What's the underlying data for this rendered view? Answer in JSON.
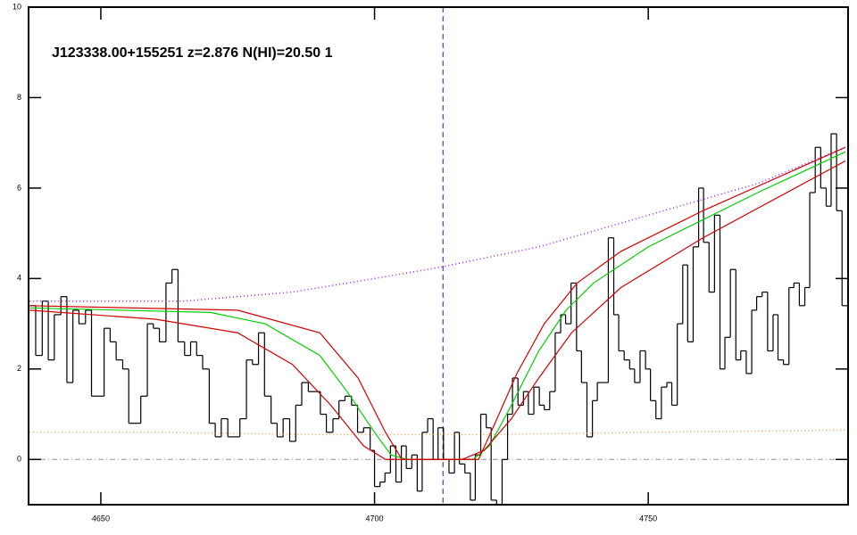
{
  "chart_data": {
    "type": "line",
    "title": "J123338.00+155251 z=2.876 N(HI)=20.50 1",
    "xlim": [
      4636.8,
      4786.5
    ],
    "ylim": [
      -1,
      10
    ],
    "xticks": [
      4650,
      4700,
      4750
    ],
    "yticks": [
      0,
      2,
      4,
      6,
      8,
      10
    ],
    "reference_x": 4712.5,
    "reference_y": 0,
    "series": [
      {
        "style": "steps",
        "color": "#000000",
        "x": [
          4637.0,
          4638.1,
          4639.3,
          4640.4,
          4641.5,
          4642.7,
          4643.8,
          4644.9,
          4646.0,
          4647.2,
          4648.3,
          4649.4,
          4650.6,
          4651.7,
          4652.8,
          4654.0,
          4655.1,
          4656.2,
          4657.3,
          4658.5,
          4659.6,
          4660.7,
          4661.9,
          4663.0,
          4664.1,
          4665.3,
          4666.4,
          4667.5,
          4668.6,
          4669.8,
          4670.9,
          4672.0,
          4673.2,
          4674.3,
          4675.4,
          4676.6,
          4677.7,
          4678.8,
          4679.9,
          4681.1,
          4682.2,
          4683.3,
          4684.5,
          4685.6,
          4686.7,
          4687.9,
          4689.0,
          4690.1,
          4691.2,
          4692.4,
          4693.5,
          4694.6,
          4695.8,
          4696.9,
          4698.0,
          4699.2,
          4700.0,
          4701.0,
          4701.9,
          4702.9,
          4703.9,
          4704.9,
          4705.8,
          4706.8,
          4707.8,
          4708.7,
          4709.7,
          4710.7,
          4711.6,
          4712.6,
          4713.6,
          4714.6,
          4715.5,
          4716.5,
          4717.5,
          4718.4,
          4719.4,
          4720.4,
          4721.3,
          4722.3,
          4723.3,
          4724.3,
          4725.2,
          4726.2,
          4727.2,
          4728.1,
          4729.1,
          4730.1,
          4731.0,
          4732.0,
          4733.0,
          4734.0,
          4734.9,
          4735.9,
          4736.9,
          4737.8,
          4738.8,
          4739.8,
          4740.7,
          4741.7,
          4742.7,
          4743.7,
          4744.6,
          4745.6,
          4746.6,
          4747.5,
          4748.5,
          4749.5,
          4750.4,
          4751.4,
          4752.4,
          4753.4,
          4754.3,
          4755.3,
          4756.3,
          4757.2,
          4758.2,
          4759.2,
          4760.1,
          4761.1,
          4762.1,
          4763.1,
          4764.0,
          4765.0,
          4766.0,
          4766.9,
          4767.9,
          4768.9,
          4769.8,
          4770.8,
          4771.8,
          4772.8,
          4773.7,
          4774.7,
          4775.7,
          4776.6,
          4777.6,
          4778.6,
          4779.5,
          4780.5,
          4781.5,
          4782.5,
          4783.4,
          4784.4,
          4785.4
        ],
        "values": [
          3.4,
          2.3,
          3.5,
          2.2,
          3.2,
          3.6,
          1.7,
          3.3,
          3.0,
          3.3,
          1.4,
          1.4,
          2.9,
          2.6,
          2.2,
          2.0,
          0.8,
          0.8,
          1.4,
          3.0,
          2.9,
          2.6,
          3.9,
          4.2,
          2.6,
          2.3,
          2.6,
          2.3,
          2.0,
          0.8,
          0.5,
          0.9,
          0.5,
          0.5,
          0.9,
          2.2,
          2.1,
          2.8,
          1.4,
          0.8,
          0.5,
          0.9,
          0.4,
          1.2,
          1.7,
          1.5,
          1.5,
          1.0,
          0.6,
          0.9,
          1.3,
          1.4,
          1.2,
          0.6,
          0.7,
          0.2,
          -0.6,
          -0.5,
          -0.3,
          0.3,
          -0.5,
          0.3,
          -0.2,
          0.1,
          -0.7,
          0.6,
          0.9,
          0.0,
          0.7,
          0.0,
          -0.3,
          0.6,
          -0.1,
          -0.3,
          -0.9,
          0.1,
          1.0,
          0.7,
          -0.9,
          -1.0,
          0.0,
          1.0,
          1.8,
          1.2,
          1.5,
          1.0,
          1.6,
          1.2,
          1.1,
          1.5,
          2.8,
          3.2,
          3.0,
          3.9,
          2.4,
          1.7,
          0.5,
          1.3,
          1.7,
          1.7,
          4.9,
          3.2,
          2.4,
          2.2,
          2.0,
          1.7,
          2.4,
          2.0,
          1.3,
          0.9,
          1.6,
          1.7,
          1.2,
          3.0,
          4.3,
          2.6,
          4.7,
          6.0,
          4.8,
          3.7,
          5.4,
          2.0,
          2.7,
          4.2,
          2.2,
          2.4,
          1.9,
          3.3,
          3.6,
          3.7,
          2.4,
          3.2,
          2.2,
          2.1,
          3.8,
          3.9,
          3.4,
          3.8,
          5.9,
          6.9,
          6.0,
          5.6,
          7.2,
          5.5,
          3.4
        ]
      },
      {
        "style": "dotted",
        "color": "#9a1aff",
        "x": [
          4637,
          4665,
          4685,
          4700,
          4712,
          4730,
          4750,
          4770,
          4786
        ],
        "values": [
          3.5,
          3.5,
          3.7,
          4.0,
          4.25,
          4.7,
          5.4,
          6.1,
          6.9
        ]
      },
      {
        "style": "dotted",
        "color": "#e8a050",
        "x": [
          4637,
          4660,
          4690,
          4720,
          4750,
          4786
        ],
        "values": [
          0.6,
          0.6,
          0.55,
          0.55,
          0.6,
          0.65
        ]
      },
      {
        "style": "line",
        "color": "#00d000",
        "x": [
          4637,
          4670,
          4680,
          4690,
          4695,
          4700,
          4703,
          4706,
          4718,
          4721,
          4725,
          4730,
          4735,
          4740,
          4750,
          4760,
          4770,
          4786
        ],
        "values": [
          3.35,
          3.25,
          3.0,
          2.3,
          1.5,
          0.6,
          0.1,
          0,
          0,
          0.3,
          1.2,
          2.4,
          3.3,
          3.9,
          4.7,
          5.3,
          5.9,
          6.8
        ]
      },
      {
        "style": "line",
        "color": "#d00000",
        "x": [
          4637,
          4675,
          4690,
          4697,
          4702,
          4705,
          4719,
          4722,
          4726,
          4731,
          4737,
          4745,
          4760,
          4786
        ],
        "values": [
          3.4,
          3.3,
          2.8,
          1.8,
          0.6,
          0.0,
          0.0,
          0.8,
          1.9,
          3.0,
          3.9,
          4.6,
          5.5,
          6.9
        ]
      },
      {
        "style": "line",
        "color": "#d00000",
        "x": [
          4637,
          4660,
          4675,
          4685,
          4692,
          4698,
          4702,
          4716,
          4720,
          4725,
          4730,
          4736,
          4745,
          4760,
          4786
        ],
        "values": [
          3.3,
          3.1,
          2.8,
          2.1,
          1.2,
          0.3,
          0.0,
          0.0,
          0.2,
          0.9,
          1.8,
          2.8,
          3.8,
          4.9,
          6.6
        ]
      }
    ]
  }
}
